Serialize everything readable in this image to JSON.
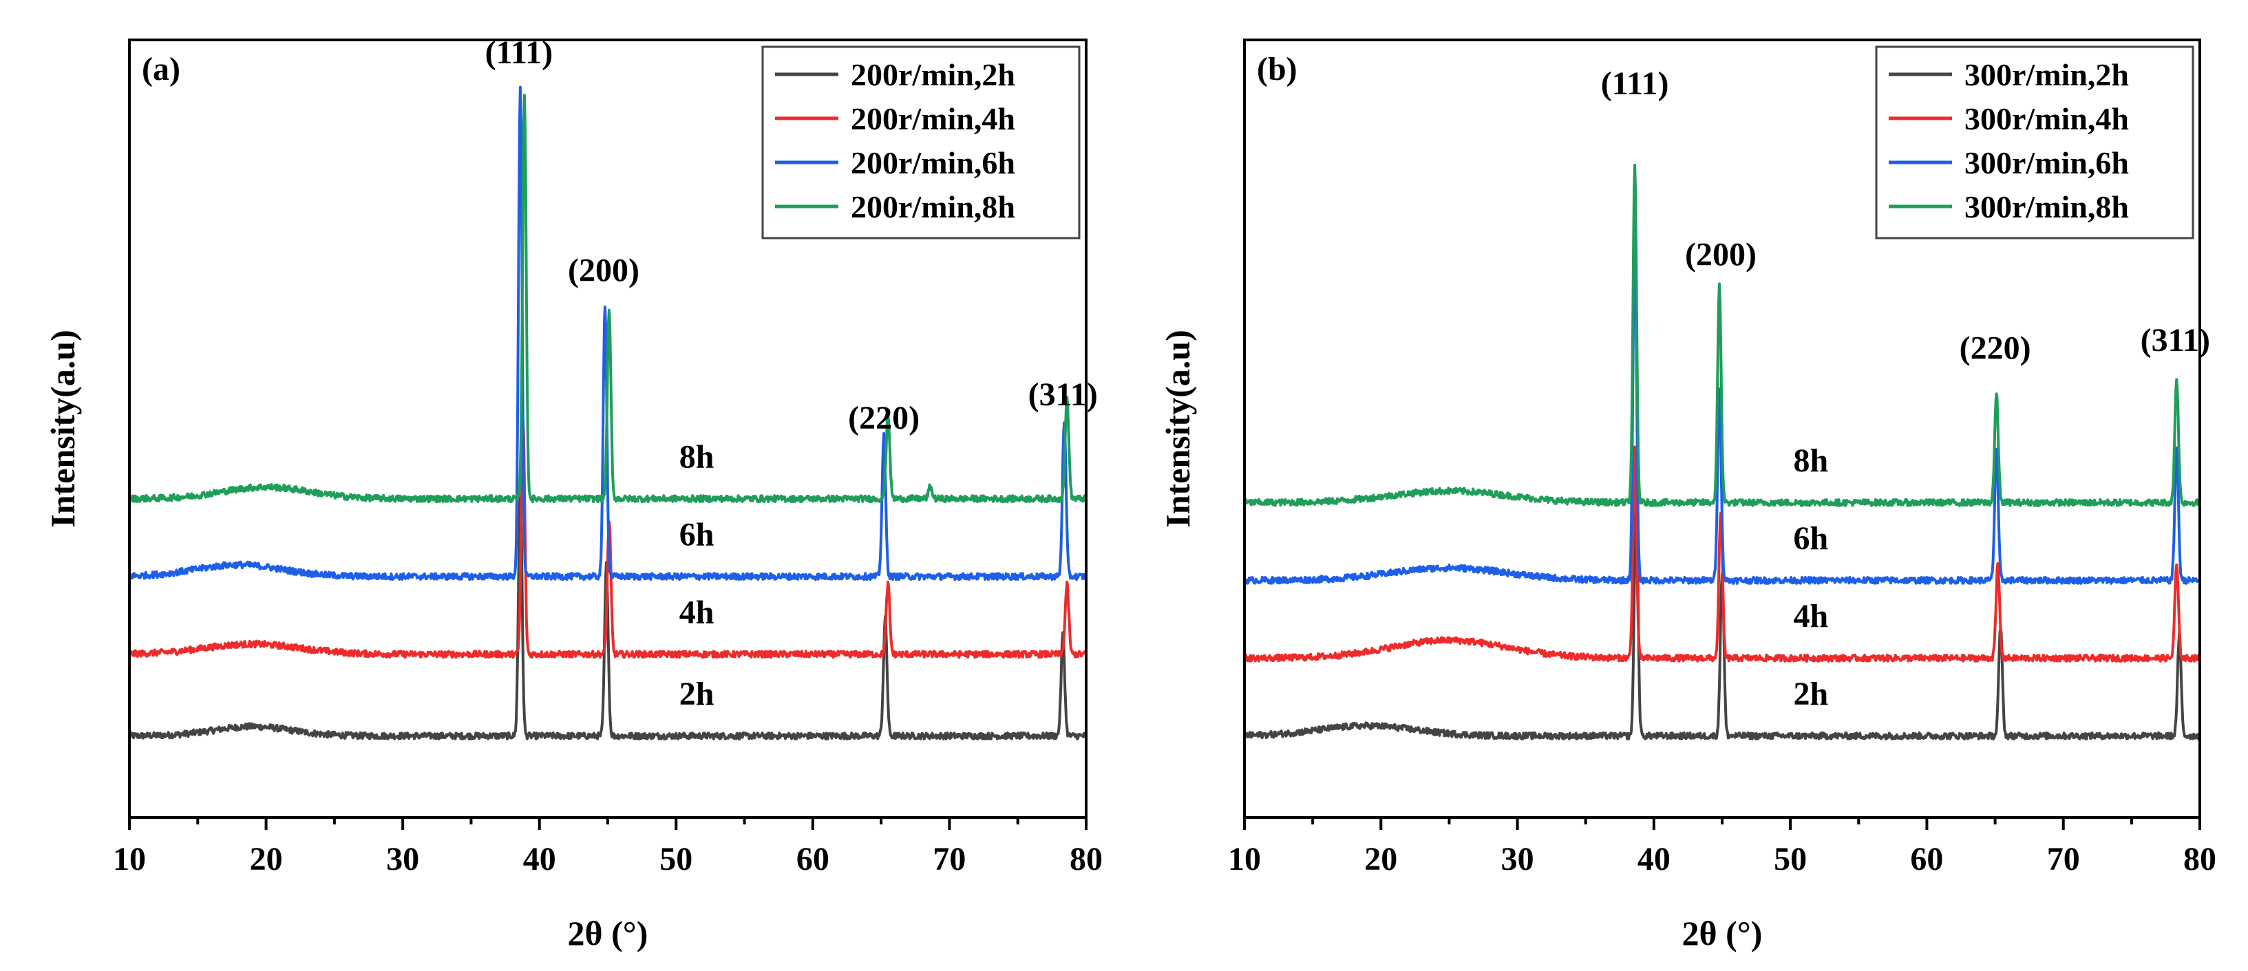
{
  "colors": {
    "2h": "#444444",
    "4h": "#ee2b2b",
    "6h": "#1e5fe8",
    "8h": "#1f9e5a"
  },
  "chart_data": [
    {
      "type": "line",
      "panel_tag": "(a)",
      "xlabel": "2θ (°)",
      "ylabel": "Intensity(a.u)",
      "xlim": [
        10,
        80
      ],
      "xticks": [
        10,
        20,
        30,
        40,
        50,
        60,
        70,
        80
      ],
      "xtick_labels": [
        "10",
        "20",
        "30",
        "40",
        "50",
        "60",
        "70",
        "80"
      ],
      "ylim": [
        0,
        100
      ],
      "legend_position": "top-right",
      "peak_annotations": [
        {
          "label": "(111)",
          "x": 38.5,
          "y": 97
        },
        {
          "label": "(200)",
          "x": 44.7,
          "y": 69
        },
        {
          "label": "(220)",
          "x": 65.2,
          "y": 50
        },
        {
          "label": "(311)",
          "x": 78.3,
          "y": 53
        }
      ],
      "series": [
        {
          "name": "200r/min,2h",
          "tag": "2h",
          "color_key": "2h",
          "baseline": 10.5,
          "hump": {
            "center": 19,
            "width": 4,
            "height": 1.2
          },
          "peaks": [
            {
              "x": 38.6,
              "height": 32
            },
            {
              "x": 44.9,
              "height": 22
            },
            {
              "x": 65.3,
              "height": 15
            },
            {
              "x": 78.3,
              "height": 13
            }
          ]
        },
        {
          "name": "200r/min,4h",
          "tag": "4h",
          "color_key": "4h",
          "baseline": 21,
          "hump": {
            "center": 19,
            "width": 5,
            "height": 1.3
          },
          "peaks": [
            {
              "x": 38.8,
              "height": 30
            },
            {
              "x": 45.1,
              "height": 17
            },
            {
              "x": 65.5,
              "height": 9
            },
            {
              "x": 78.6,
              "height": 9
            }
          ]
        },
        {
          "name": "200r/min,6h",
          "tag": "6h",
          "color_key": "6h",
          "baseline": 31,
          "hump": {
            "center": 18,
            "width": 4.5,
            "height": 1.5
          },
          "peaks": [
            {
              "x": 38.6,
              "height": 63
            },
            {
              "x": 44.8,
              "height": 35
            },
            {
              "x": 65.2,
              "height": 18
            },
            {
              "x": 78.4,
              "height": 20
            }
          ]
        },
        {
          "name": "200r/min,8h",
          "tag": "8h",
          "color_key": "8h",
          "baseline": 41,
          "hump": {
            "center": 20,
            "width": 4.5,
            "height": 1.5
          },
          "peaks": [
            {
              "x": 38.9,
              "height": 52
            },
            {
              "x": 45.1,
              "height": 24
            },
            {
              "x": 65.5,
              "height": 11
            },
            {
              "x": 68.6,
              "height": 1.5
            },
            {
              "x": 78.6,
              "height": 13
            }
          ]
        }
      ]
    },
    {
      "type": "line",
      "panel_tag": "(b)",
      "xlabel": "2θ (°)",
      "ylabel": "Intensity(a.u)",
      "xlim": [
        10,
        80
      ],
      "xticks": [
        10,
        20,
        30,
        40,
        50,
        60,
        70,
        80
      ],
      "xtick_labels": [
        "10",
        "20",
        "30",
        "40",
        "50",
        "60",
        "70",
        "80"
      ],
      "ylim": [
        0,
        100
      ],
      "legend_position": "top-right",
      "peak_annotations": [
        {
          "label": "(111)",
          "x": 38.6,
          "y": 93
        },
        {
          "label": "(200)",
          "x": 44.9,
          "y": 71
        },
        {
          "label": "(220)",
          "x": 65.0,
          "y": 59
        },
        {
          "label": "(311)",
          "x": 78.2,
          "y": 60
        }
      ],
      "series": [
        {
          "name": "300r/min,2h",
          "tag": "2h",
          "color_key": "2h",
          "baseline": 10.5,
          "hump": {
            "center": 19,
            "width": 5,
            "height": 1.3
          },
          "peaks": [
            {
              "x": 38.7,
              "height": 33
            },
            {
              "x": 45.0,
              "height": 21
            },
            {
              "x": 65.4,
              "height": 14
            },
            {
              "x": 78.5,
              "height": 13
            }
          ]
        },
        {
          "name": "300r/min,4h",
          "tag": "4h",
          "color_key": "4h",
          "baseline": 20.5,
          "hump": {
            "center": 25,
            "width": 6,
            "height": 2.3
          },
          "peaks": [
            {
              "x": 38.6,
              "height": 27
            },
            {
              "x": 44.9,
              "height": 19
            },
            {
              "x": 65.2,
              "height": 12
            },
            {
              "x": 78.3,
              "height": 12
            }
          ]
        },
        {
          "name": "300r/min,6h",
          "tag": "6h",
          "color_key": "6h",
          "baseline": 30.5,
          "hump": {
            "center": 25,
            "width": 6,
            "height": 1.6
          },
          "peaks": [
            {
              "x": 38.6,
              "height": 45
            },
            {
              "x": 44.8,
              "height": 25
            },
            {
              "x": 65.1,
              "height": 17
            },
            {
              "x": 78.3,
              "height": 17
            }
          ]
        },
        {
          "name": "300r/min,8h",
          "tag": "8h",
          "color_key": "8h",
          "baseline": 40.5,
          "hump": {
            "center": 25,
            "width": 6,
            "height": 1.5
          },
          "peaks": [
            {
              "x": 38.6,
              "height": 43
            },
            {
              "x": 44.8,
              "height": 28
            },
            {
              "x": 65.1,
              "height": 14
            },
            {
              "x": 78.3,
              "height": 16
            }
          ]
        }
      ]
    }
  ]
}
